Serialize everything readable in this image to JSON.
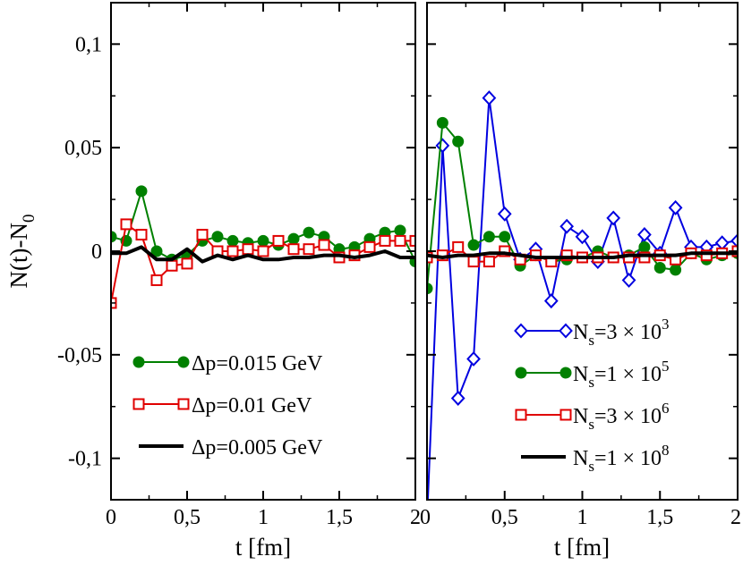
{
  "chart_data": [
    {
      "type": "line",
      "panel": "left",
      "xlabel": "t [fm]",
      "ylabel": "N(t)-N",
      "ylabel_sub": "0",
      "xlim": [
        0,
        2
      ],
      "ylim": [
        -0.12,
        0.12
      ],
      "x_ticks": [
        {
          "v": 0,
          "label": "0"
        },
        {
          "v": 0.5,
          "label": "0,5"
        },
        {
          "v": 1,
          "label": "1"
        },
        {
          "v": 1.5,
          "label": "1,5"
        },
        {
          "v": 2,
          "label": "2"
        }
      ],
      "y_ticks": [
        {
          "v": 0.1,
          "label": "0,1"
        },
        {
          "v": 0.05,
          "label": "0,05"
        },
        {
          "v": 0,
          "label": "0"
        },
        {
          "v": -0.05,
          "label": "-0,05"
        },
        {
          "v": -0.1,
          "label": "-0,1"
        }
      ],
      "legend_position": "bottom-left",
      "series": [
        {
          "name": "Δp=0.015 GeV",
          "color": "#008000",
          "marker": "filled-circle",
          "x": [
            0,
            0.1,
            0.2,
            0.3,
            0.4,
            0.5,
            0.6,
            0.7,
            0.8,
            0.9,
            1.0,
            1.1,
            1.2,
            1.3,
            1.4,
            1.5,
            1.6,
            1.7,
            1.8,
            1.9,
            2.0
          ],
          "y": [
            0.007,
            0.005,
            0.029,
            0.0,
            -0.004,
            -0.002,
            0.005,
            0.007,
            0.005,
            0.004,
            0.005,
            0.003,
            0.006,
            0.009,
            0.007,
            0.001,
            0.002,
            0.006,
            0.009,
            0.01,
            -0.005
          ]
        },
        {
          "name": "Δp=0.01 GeV",
          "color": "#e00000",
          "marker": "open-square",
          "x": [
            0,
            0.1,
            0.2,
            0.3,
            0.4,
            0.5,
            0.6,
            0.7,
            0.8,
            0.9,
            1.0,
            1.1,
            1.2,
            1.3,
            1.4,
            1.5,
            1.6,
            1.7,
            1.8,
            1.9,
            2.0
          ],
          "y": [
            -0.025,
            0.013,
            0.008,
            -0.014,
            -0.007,
            -0.006,
            0.008,
            0.0,
            0.0,
            0.001,
            0.0,
            0.005,
            0.001,
            0.001,
            0.003,
            -0.003,
            -0.002,
            0.002,
            0.005,
            0.005,
            0.005
          ]
        },
        {
          "name": "Δp=0.005 GeV",
          "color": "#000000",
          "marker": "none",
          "x": [
            0,
            0.1,
            0.2,
            0.3,
            0.4,
            0.5,
            0.6,
            0.7,
            0.8,
            0.9,
            1.0,
            1.1,
            1.2,
            1.3,
            1.4,
            1.5,
            1.6,
            1.7,
            1.8,
            1.9,
            2.0
          ],
          "y": [
            -0.001,
            -0.001,
            0.002,
            -0.004,
            -0.004,
            0.001,
            -0.005,
            -0.002,
            -0.004,
            -0.002,
            -0.004,
            -0.004,
            -0.003,
            -0.003,
            -0.002,
            -0.002,
            -0.003,
            -0.002,
            0.0,
            -0.003,
            -0.003
          ]
        }
      ]
    },
    {
      "type": "line",
      "panel": "right",
      "xlabel": "t [fm]",
      "xlim": [
        0,
        2
      ],
      "ylim": [
        -0.12,
        0.12
      ],
      "x_ticks": [
        {
          "v": 0,
          "label": "0"
        },
        {
          "v": 0.5,
          "label": "0,5"
        },
        {
          "v": 1,
          "label": "1"
        },
        {
          "v": 1.5,
          "label": "1,5"
        },
        {
          "v": 2,
          "label": "2"
        }
      ],
      "legend_position": "bottom-right",
      "series": [
        {
          "name": "N",
          "name_sub": "s",
          "name_rest": "=3 × 10",
          "name_sup": "3",
          "color": "#0000e0",
          "marker": "open-diamond",
          "x": [
            0,
            0.1,
            0.2,
            0.3,
            0.4,
            0.5,
            0.6,
            0.7,
            0.8,
            0.9,
            1.0,
            1.1,
            1.2,
            1.3,
            1.4,
            1.5,
            1.6,
            1.7,
            1.8,
            1.9,
            2.0
          ],
          "y": [
            -0.13,
            0.051,
            -0.071,
            -0.052,
            0.074,
            0.018,
            -0.004,
            0.001,
            -0.024,
            0.012,
            0.007,
            -0.005,
            0.016,
            -0.014,
            0.008,
            -0.001,
            0.021,
            0.002,
            0.002,
            0.004,
            0.005
          ]
        },
        {
          "name": "N",
          "name_sub": "s",
          "name_rest": "=1 × 10",
          "name_sup": "5",
          "color": "#008000",
          "marker": "filled-circle",
          "x": [
            0,
            0.1,
            0.2,
            0.3,
            0.4,
            0.5,
            0.6,
            0.7,
            0.8,
            0.9,
            1.0,
            1.1,
            1.2,
            1.3,
            1.4,
            1.5,
            1.6,
            1.7,
            1.8,
            1.9,
            2.0
          ],
          "y": [
            -0.018,
            0.062,
            0.053,
            0.003,
            0.007,
            0.007,
            -0.007,
            -0.002,
            -0.005,
            -0.004,
            -0.003,
            0.0,
            -0.003,
            -0.002,
            0.002,
            -0.008,
            -0.009,
            -0.001,
            -0.004,
            -0.002,
            -0.001
          ]
        },
        {
          "name": "N",
          "name_sub": "s",
          "name_rest": "=3 × 10",
          "name_sup": "6",
          "color": "#e00000",
          "marker": "open-square",
          "x": [
            0,
            0.1,
            0.2,
            0.3,
            0.4,
            0.5,
            0.6,
            0.7,
            0.8,
            0.9,
            1.0,
            1.1,
            1.2,
            1.3,
            1.4,
            1.5,
            1.6,
            1.7,
            1.8,
            1.9,
            2.0
          ],
          "y": [
            -0.003,
            -0.002,
            0.002,
            -0.005,
            -0.005,
            0.0,
            -0.004,
            -0.002,
            -0.005,
            -0.002,
            -0.003,
            -0.003,
            -0.003,
            -0.003,
            -0.003,
            -0.002,
            -0.004,
            -0.001,
            -0.002,
            -0.001,
            0.0
          ]
        },
        {
          "name": "N",
          "name_sub": "s",
          "name_rest": "=1 × 10",
          "name_sup": "8",
          "color": "#000000",
          "marker": "none",
          "x": [
            0,
            0.1,
            0.2,
            0.3,
            0.4,
            0.5,
            0.6,
            0.7,
            0.8,
            0.9,
            1.0,
            1.1,
            1.2,
            1.3,
            1.4,
            1.5,
            1.6,
            1.7,
            1.8,
            1.9,
            2.0
          ],
          "y": [
            -0.002,
            -0.003,
            -0.002,
            -0.002,
            -0.001,
            -0.001,
            -0.002,
            -0.003,
            -0.003,
            -0.003,
            -0.003,
            -0.003,
            -0.003,
            -0.002,
            -0.002,
            -0.002,
            -0.002,
            -0.001,
            -0.001,
            -0.001,
            -0.001
          ]
        }
      ]
    }
  ]
}
